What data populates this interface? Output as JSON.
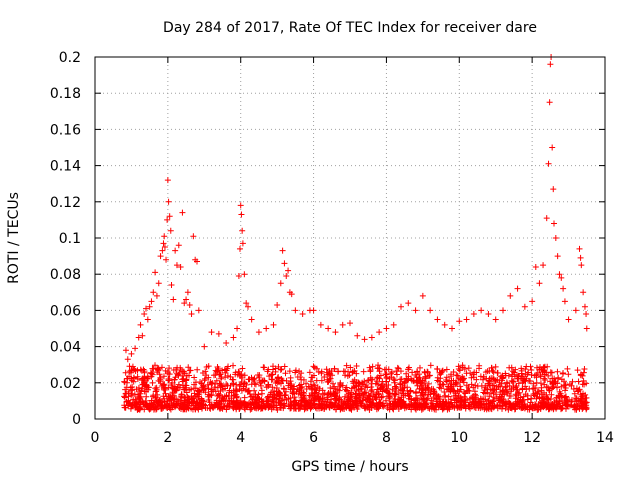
{
  "chart_data": {
    "type": "scatter",
    "title": "Day 284 of 2017, Rate Of TEC Index for receiver dare",
    "xlabel": "GPS time / hours",
    "ylabel": "ROTI / TECUs",
    "xlim": [
      0,
      14
    ],
    "ylim": [
      0,
      0.2
    ],
    "x_ticks": [
      0,
      2,
      4,
      6,
      8,
      10,
      12,
      14
    ],
    "x_tick_labels": [
      "0",
      "2",
      "4",
      "6",
      "8",
      "10",
      "12",
      "14"
    ],
    "y_ticks": [
      0,
      0.02,
      0.04,
      0.06,
      0.08,
      0.1,
      0.12,
      0.14,
      0.16,
      0.18,
      0.2
    ],
    "y_tick_labels": [
      "0",
      "0.02",
      "0.04",
      "0.06",
      "0.08",
      "0.1",
      "0.12",
      "0.14",
      "0.16",
      "0.18",
      "0.2"
    ],
    "grid": true,
    "marker": "+",
    "color": "#ff0000",
    "x_range_observed": [
      0.8,
      13.5
    ],
    "baseline_band": [
      0.005,
      0.03
    ],
    "series": [
      {
        "name": "ROTI",
        "points": [
          [
            0.85,
            0.038
          ],
          [
            0.9,
            0.033
          ],
          [
            1.0,
            0.036
          ],
          [
            1.1,
            0.039
          ],
          [
            1.2,
            0.045
          ],
          [
            1.25,
            0.052
          ],
          [
            1.3,
            0.046
          ],
          [
            1.35,
            0.058
          ],
          [
            1.4,
            0.061
          ],
          [
            1.45,
            0.055
          ],
          [
            1.5,
            0.062
          ],
          [
            1.55,
            0.065
          ],
          [
            1.6,
            0.07
          ],
          [
            1.65,
            0.081
          ],
          [
            1.7,
            0.068
          ],
          [
            1.75,
            0.075
          ],
          [
            1.8,
            0.09
          ],
          [
            1.85,
            0.093
          ],
          [
            1.88,
            0.097
          ],
          [
            1.9,
            0.101
          ],
          [
            1.92,
            0.095
          ],
          [
            1.95,
            0.088
          ],
          [
            1.98,
            0.11
          ],
          [
            2.0,
            0.132
          ],
          [
            2.02,
            0.12
          ],
          [
            2.05,
            0.112
          ],
          [
            2.08,
            0.104
          ],
          [
            2.1,
            0.074
          ],
          [
            2.15,
            0.066
          ],
          [
            2.2,
            0.093
          ],
          [
            2.25,
            0.085
          ],
          [
            2.3,
            0.096
          ],
          [
            2.35,
            0.084
          ],
          [
            2.4,
            0.114
          ],
          [
            2.45,
            0.064
          ],
          [
            2.5,
            0.066
          ],
          [
            2.55,
            0.07
          ],
          [
            2.6,
            0.063
          ],
          [
            2.65,
            0.058
          ],
          [
            2.7,
            0.101
          ],
          [
            2.75,
            0.088
          ],
          [
            2.8,
            0.087
          ],
          [
            2.85,
            0.06
          ],
          [
            3.0,
            0.04
          ],
          [
            3.2,
            0.048
          ],
          [
            3.4,
            0.047
          ],
          [
            3.6,
            0.042
          ],
          [
            3.8,
            0.045
          ],
          [
            3.9,
            0.05
          ],
          [
            3.95,
            0.079
          ],
          [
            3.98,
            0.094
          ],
          [
            4.0,
            0.118
          ],
          [
            4.02,
            0.113
          ],
          [
            4.04,
            0.104
          ],
          [
            4.06,
            0.097
          ],
          [
            4.1,
            0.08
          ],
          [
            4.15,
            0.064
          ],
          [
            4.2,
            0.062
          ],
          [
            4.3,
            0.055
          ],
          [
            4.5,
            0.048
          ],
          [
            4.7,
            0.05
          ],
          [
            4.9,
            0.052
          ],
          [
            5.0,
            0.063
          ],
          [
            5.1,
            0.075
          ],
          [
            5.15,
            0.093
          ],
          [
            5.2,
            0.086
          ],
          [
            5.25,
            0.079
          ],
          [
            5.3,
            0.082
          ],
          [
            5.35,
            0.07
          ],
          [
            5.4,
            0.069
          ],
          [
            5.5,
            0.06
          ],
          [
            5.7,
            0.058
          ],
          [
            5.9,
            0.06
          ],
          [
            6.0,
            0.06
          ],
          [
            6.2,
            0.052
          ],
          [
            6.4,
            0.05
          ],
          [
            6.6,
            0.048
          ],
          [
            6.8,
            0.052
          ],
          [
            7.0,
            0.053
          ],
          [
            7.2,
            0.046
          ],
          [
            7.4,
            0.044
          ],
          [
            7.6,
            0.045
          ],
          [
            7.8,
            0.048
          ],
          [
            8.0,
            0.05
          ],
          [
            8.2,
            0.052
          ],
          [
            8.4,
            0.062
          ],
          [
            8.6,
            0.064
          ],
          [
            8.8,
            0.06
          ],
          [
            9.0,
            0.068
          ],
          [
            9.2,
            0.06
          ],
          [
            9.4,
            0.055
          ],
          [
            9.6,
            0.052
          ],
          [
            9.8,
            0.05
          ],
          [
            10.0,
            0.054
          ],
          [
            10.2,
            0.055
          ],
          [
            10.4,
            0.058
          ],
          [
            10.6,
            0.06
          ],
          [
            10.8,
            0.058
          ],
          [
            11.0,
            0.055
          ],
          [
            11.2,
            0.06
          ],
          [
            11.4,
            0.068
          ],
          [
            11.6,
            0.072
          ],
          [
            11.8,
            0.062
          ],
          [
            12.0,
            0.065
          ],
          [
            12.1,
            0.084
          ],
          [
            12.2,
            0.075
          ],
          [
            12.3,
            0.085
          ],
          [
            12.4,
            0.111
          ],
          [
            12.45,
            0.141
          ],
          [
            12.48,
            0.175
          ],
          [
            12.5,
            0.196
          ],
          [
            12.52,
            0.2
          ],
          [
            12.55,
            0.15
          ],
          [
            12.58,
            0.127
          ],
          [
            12.6,
            0.108
          ],
          [
            12.65,
            0.1
          ],
          [
            12.7,
            0.09
          ],
          [
            12.75,
            0.08
          ],
          [
            12.8,
            0.078
          ],
          [
            12.85,
            0.072
          ],
          [
            12.9,
            0.065
          ],
          [
            13.0,
            0.055
          ],
          [
            13.2,
            0.06
          ],
          [
            13.3,
            0.094
          ],
          [
            13.33,
            0.089
          ],
          [
            13.35,
            0.085
          ],
          [
            13.4,
            0.07
          ],
          [
            13.45,
            0.062
          ],
          [
            13.48,
            0.058
          ],
          [
            13.5,
            0.05
          ]
        ]
      }
    ]
  }
}
